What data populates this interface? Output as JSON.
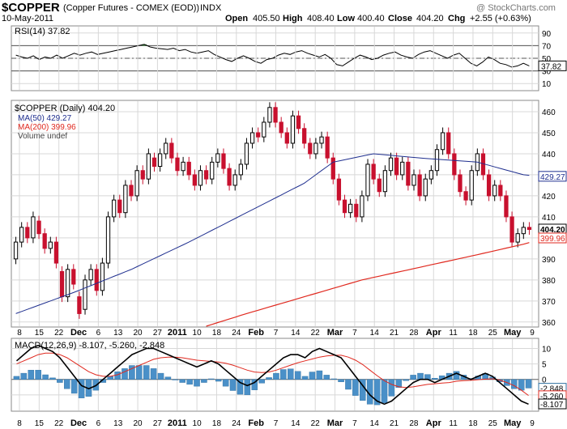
{
  "header": {
    "symbol": "$COPPER",
    "description": "(Copper Futures - COMEX (EOD))",
    "exchange": "INDX",
    "date": "10-May-2011",
    "watermark": "@ StockCharts.com",
    "ohlc": {
      "open_label": "Open",
      "open": "405.50",
      "high_label": "High",
      "high": "408.40",
      "low_label": "Low",
      "low": "400.40",
      "close_label": "Close",
      "close": "404.20",
      "chg_label": "Chg",
      "chg": "+2.55 (+0.63%)"
    }
  },
  "colors": {
    "up": "#000000",
    "down": "#c8102e",
    "ma50": "#1f2f8f",
    "ma200": "#e0291f",
    "macd": "#000000",
    "signal": "#e0291f",
    "histogram": "#4a90c8",
    "grid": "#d8d8d8",
    "rsi_fill": "#3a8f3a"
  },
  "chart_data": [
    {
      "type": "line",
      "name": "rsi-panel",
      "title": "RSI(14) 37.82",
      "y_ticks": [
        90,
        70,
        50,
        30,
        10
      ],
      "ylim": [
        0,
        100
      ],
      "reference_lines": [
        70,
        50,
        30
      ],
      "last_label": "37.82",
      "values": [
        55,
        52,
        50,
        54,
        48,
        52,
        50,
        55,
        50,
        54,
        58,
        55,
        58,
        60,
        56,
        58,
        60,
        62,
        64,
        66,
        68,
        70,
        72,
        68,
        66,
        65,
        64,
        66,
        62,
        64,
        60,
        58,
        60,
        62,
        56,
        52,
        48,
        45,
        50,
        54,
        50,
        45,
        42,
        48,
        50,
        55,
        58,
        56,
        60,
        62,
        58,
        55,
        52,
        56,
        50,
        40,
        38,
        44,
        50,
        55,
        52,
        48,
        50,
        55,
        58,
        60,
        55,
        52,
        50,
        56,
        60,
        62,
        58,
        54,
        50,
        55,
        58,
        50,
        42,
        38,
        44,
        52,
        48,
        42,
        40,
        36,
        38,
        42,
        38
      ]
    },
    {
      "type": "candlestick",
      "name": "price-panel",
      "title": "$COPPER (Daily) 404.20",
      "y_ticks": [
        460,
        450,
        440,
        430,
        420,
        410,
        400,
        390,
        380,
        370,
        360
      ],
      "ylim": [
        358,
        465
      ],
      "x_tick_labels": [
        "8",
        "15",
        "22",
        "Dec",
        "6",
        "13",
        "20",
        "27",
        "2011",
        "10",
        "18",
        "24",
        "Feb",
        "7",
        "14",
        "22",
        "Mar",
        "7",
        "14",
        "21",
        "28",
        "Apr",
        "11",
        "18",
        "25",
        "May",
        "9"
      ],
      "x_tick_bold": [
        "Dec",
        "2011",
        "Feb",
        "Mar",
        "Apr",
        "May"
      ],
      "legend": [
        "$COPPER (Daily) 404.20",
        "MA(50) 429.27",
        "MA(200) 399.96",
        "Volume undef"
      ],
      "last_labels": {
        "close": "404.20",
        "ma50": "429.27",
        "ma200": "399.96"
      },
      "candles": [
        [
          390,
          398
        ],
        [
          398,
          405
        ],
        [
          405,
          400
        ],
        [
          400,
          410
        ],
        [
          408,
          402
        ],
        [
          402,
          395
        ],
        [
          395,
          398
        ],
        [
          398,
          388
        ],
        [
          384,
          372
        ],
        [
          372,
          385
        ],
        [
          385,
          378
        ],
        [
          372,
          364
        ],
        [
          366,
          380
        ],
        [
          380,
          385
        ],
        [
          385,
          375
        ],
        [
          375,
          388
        ],
        [
          388,
          410
        ],
        [
          410,
          418
        ],
        [
          418,
          412
        ],
        [
          412,
          425
        ],
        [
          425,
          420
        ],
        [
          420,
          432
        ],
        [
          432,
          428
        ],
        [
          428,
          440
        ],
        [
          438,
          434
        ],
        [
          434,
          440
        ],
        [
          440,
          445
        ],
        [
          445,
          438
        ],
        [
          438,
          432
        ],
        [
          432,
          436
        ],
        [
          436,
          430
        ],
        [
          430,
          425
        ],
        [
          425,
          432
        ],
        [
          432,
          428
        ],
        [
          428,
          436
        ],
        [
          436,
          440
        ],
        [
          440,
          433
        ],
        [
          433,
          425
        ],
        [
          425,
          430
        ],
        [
          430,
          435
        ],
        [
          435,
          445
        ],
        [
          445,
          450
        ],
        [
          450,
          448
        ],
        [
          448,
          455
        ],
        [
          455,
          462
        ],
        [
          462,
          455
        ],
        [
          455,
          450
        ],
        [
          450,
          445
        ],
        [
          445,
          458
        ],
        [
          458,
          452
        ],
        [
          452,
          445
        ],
        [
          445,
          440
        ],
        [
          440,
          445
        ],
        [
          445,
          448
        ],
        [
          448,
          438
        ],
        [
          438,
          428
        ],
        [
          428,
          418
        ],
        [
          418,
          412
        ],
        [
          412,
          416
        ],
        [
          416,
          410
        ],
        [
          410,
          420
        ],
        [
          420,
          435
        ],
        [
          435,
          428
        ],
        [
          428,
          422
        ],
        [
          422,
          432
        ],
        [
          432,
          438
        ],
        [
          438,
          430
        ],
        [
          430,
          436
        ],
        [
          436,
          425
        ],
        [
          425,
          430
        ],
        [
          430,
          420
        ],
        [
          420,
          428
        ],
        [
          428,
          432
        ],
        [
          432,
          442
        ],
        [
          442,
          450
        ],
        [
          450,
          440
        ],
        [
          440,
          430
        ],
        [
          430,
          422
        ],
        [
          422,
          418
        ],
        [
          418,
          432
        ],
        [
          432,
          440
        ],
        [
          440,
          430
        ],
        [
          430,
          420
        ],
        [
          420,
          425
        ],
        [
          425,
          420
        ],
        [
          420,
          410
        ],
        [
          410,
          398
        ],
        [
          398,
          402
        ],
        [
          402,
          405
        ],
        [
          405,
          404
        ]
      ],
      "ma50_anchors": [
        [
          0,
          364
        ],
        [
          10,
          374
        ],
        [
          20,
          385
        ],
        [
          30,
          398
        ],
        [
          40,
          412
        ],
        [
          50,
          426
        ],
        [
          55,
          436
        ],
        [
          62,
          440
        ],
        [
          70,
          438
        ],
        [
          80,
          436
        ],
        [
          88,
          430
        ],
        [
          92,
          429
        ]
      ],
      "ma200_anchors": [
        [
          33,
          358
        ],
        [
          40,
          364
        ],
        [
          50,
          372
        ],
        [
          60,
          380
        ],
        [
          70,
          386
        ],
        [
          80,
          392
        ],
        [
          88,
          397
        ],
        [
          92,
          400
        ]
      ]
    },
    {
      "type": "line",
      "name": "macd-panel",
      "title": "MACD(12,26,9) -8.107, -5.260, -2.848",
      "y_ticks": [
        10,
        5,
        0,
        -5
      ],
      "ylim": [
        -10,
        13
      ],
      "last_labels": {
        "histogram": "-2.848",
        "signal": "-5.260",
        "macd": "-8.107"
      },
      "macd": [
        6,
        8,
        10,
        11,
        10,
        9,
        7,
        4,
        1,
        -2,
        -3,
        -2,
        0,
        2,
        4,
        6,
        8,
        9,
        10,
        10,
        9,
        8,
        7,
        6,
        5,
        4,
        5,
        6,
        5,
        3,
        1,
        -1,
        -2,
        -1,
        1,
        3,
        5,
        7,
        8,
        8,
        7,
        9,
        10,
        9,
        8,
        7,
        4,
        1,
        -2,
        -5,
        -7,
        -8,
        -7,
        -5,
        -3,
        -1,
        0,
        0,
        -1,
        0,
        1,
        2,
        1,
        0,
        1,
        2,
        1,
        -1,
        -3,
        -5,
        -7,
        -8
      ],
      "signal": [
        5,
        6,
        7,
        8,
        8.5,
        8.5,
        8,
        7,
        5.5,
        4,
        2.5,
        1.5,
        1,
        1,
        1.5,
        2.5,
        3.5,
        4.5,
        5.5,
        6.5,
        7,
        7.2,
        7.2,
        7,
        6.6,
        6.2,
        6,
        5.8,
        5.6,
        5.2,
        4.6,
        3.8,
        3,
        2.4,
        2.2,
        2.4,
        3,
        3.8,
        4.6,
        5.4,
        6,
        6.6,
        7.2,
        7.6,
        7.8,
        7.8,
        7.2,
        6.2,
        4.8,
        3,
        1.2,
        -0.4,
        -1.6,
        -2.4,
        -2.6,
        -2.4,
        -2,
        -1.6,
        -1.4,
        -1.2,
        -1,
        -0.6,
        -0.4,
        -0.3,
        -0.1,
        0.1,
        0.2,
        -0.2,
        -1,
        -2,
        -3.5,
        -5.2
      ]
    }
  ]
}
